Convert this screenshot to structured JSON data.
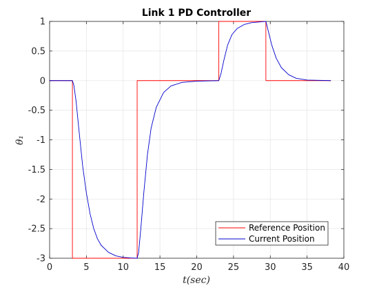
{
  "chart_data": {
    "type": "line",
    "title": "Link 1 PD Controller",
    "xlabel": "t(sec)",
    "ylabel": "θ₁",
    "xlim": [
      0,
      40
    ],
    "ylim": [
      -3,
      1
    ],
    "xticks": [
      0,
      5,
      10,
      15,
      20,
      25,
      30,
      35,
      40
    ],
    "yticks": [
      1,
      0.5,
      0,
      -0.5,
      -1,
      -1.5,
      -2,
      -2.5,
      -3
    ],
    "xtick_labels": [
      "0",
      "5",
      "10",
      "15",
      "20",
      "25",
      "30",
      "35",
      "40"
    ],
    "ytick_labels": [
      "1",
      "0.5",
      "0",
      "-0.5",
      "-1",
      "-1.5",
      "-2",
      "-2.5",
      "-3"
    ],
    "grid": true,
    "legend_position": "bottom-right",
    "series": [
      {
        "name": "Reference Position",
        "color": "#ff0000",
        "points": [
          [
            0,
            0
          ],
          [
            3.1,
            0
          ],
          [
            3.1,
            -3
          ],
          [
            11.9,
            -3
          ],
          [
            11.9,
            0
          ],
          [
            23,
            0
          ],
          [
            23,
            1
          ],
          [
            29.4,
            1
          ],
          [
            29.4,
            0
          ],
          [
            38.2,
            0
          ]
        ]
      },
      {
        "name": "Current Position",
        "color": "#0000cc",
        "points": [
          [
            0,
            0
          ],
          [
            3.1,
            0
          ],
          [
            3.3,
            -0.08
          ],
          [
            3.6,
            -0.35
          ],
          [
            4.0,
            -0.85
          ],
          [
            4.5,
            -1.45
          ],
          [
            5.0,
            -1.9
          ],
          [
            5.5,
            -2.25
          ],
          [
            6.0,
            -2.5
          ],
          [
            6.5,
            -2.67
          ],
          [
            7.0,
            -2.78
          ],
          [
            8.0,
            -2.9
          ],
          [
            9.0,
            -2.96
          ],
          [
            10.0,
            -2.985
          ],
          [
            11.0,
            -2.995
          ],
          [
            11.9,
            -3
          ],
          [
            12.1,
            -2.9
          ],
          [
            12.4,
            -2.5
          ],
          [
            12.8,
            -1.9
          ],
          [
            13.3,
            -1.25
          ],
          [
            13.8,
            -0.8
          ],
          [
            14.5,
            -0.45
          ],
          [
            15.5,
            -0.2
          ],
          [
            16.5,
            -0.09
          ],
          [
            18.0,
            -0.03
          ],
          [
            20.0,
            -0.01
          ],
          [
            23.0,
            0
          ],
          [
            23.3,
            0.12
          ],
          [
            23.7,
            0.35
          ],
          [
            24.2,
            0.6
          ],
          [
            24.8,
            0.78
          ],
          [
            25.5,
            0.88
          ],
          [
            26.5,
            0.95
          ],
          [
            27.5,
            0.98
          ],
          [
            29.4,
            1.0
          ],
          [
            29.7,
            0.85
          ],
          [
            30.2,
            0.6
          ],
          [
            30.8,
            0.38
          ],
          [
            31.5,
            0.22
          ],
          [
            32.5,
            0.1
          ],
          [
            33.5,
            0.04
          ],
          [
            35.0,
            0.01
          ],
          [
            38.2,
            0
          ]
        ]
      }
    ]
  }
}
